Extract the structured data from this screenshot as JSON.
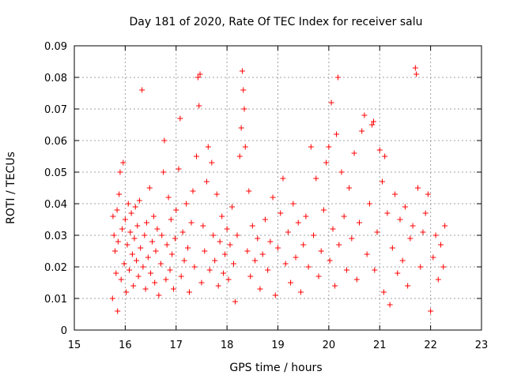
{
  "chart_data": {
    "type": "scatter",
    "title": "Day 181 of 2020, Rate Of TEC Index for receiver salu",
    "xlabel": "GPS time / hours",
    "ylabel": "ROTI / TECUs",
    "xlim": [
      15,
      23
    ],
    "ylim": [
      0,
      0.09
    ],
    "xticks": [
      15,
      16,
      17,
      18,
      19,
      20,
      21,
      22,
      23
    ],
    "xtick_labels": [
      "15",
      "16",
      "17",
      "18",
      "19",
      "20",
      "21",
      "22",
      "23"
    ],
    "yticks": [
      0,
      0.01,
      0.02,
      0.03,
      0.04,
      0.05,
      0.06,
      0.07,
      0.08,
      0.09
    ],
    "ytick_labels": [
      "0",
      "0.01",
      "0.02",
      "0.03",
      "0.04",
      "0.05",
      "0.06",
      "0.07",
      "0.08",
      "0.09"
    ],
    "grid": true,
    "marker": "+",
    "color": "#ff0000",
    "series": [
      {
        "name": "ROTI",
        "points": [
          [
            15.75,
            0.01
          ],
          [
            15.76,
            0.036
          ],
          [
            15.78,
            0.03
          ],
          [
            15.8,
            0.025
          ],
          [
            15.82,
            0.018
          ],
          [
            15.84,
            0.038
          ],
          [
            15.85,
            0.006
          ],
          [
            15.86,
            0.028
          ],
          [
            15.88,
            0.043
          ],
          [
            15.9,
            0.05
          ],
          [
            15.92,
            0.016
          ],
          [
            15.94,
            0.032
          ],
          [
            15.96,
            0.053
          ],
          [
            15.98,
            0.021
          ],
          [
            16.0,
            0.035
          ],
          [
            16.02,
            0.012
          ],
          [
            16.04,
            0.027
          ],
          [
            16.06,
            0.04
          ],
          [
            16.08,
            0.019
          ],
          [
            16.1,
            0.031
          ],
          [
            16.12,
            0.037
          ],
          [
            16.14,
            0.024
          ],
          [
            16.16,
            0.014
          ],
          [
            16.18,
            0.029
          ],
          [
            16.2,
            0.039
          ],
          [
            16.22,
            0.022
          ],
          [
            16.24,
            0.033
          ],
          [
            16.26,
            0.017
          ],
          [
            16.28,
            0.041
          ],
          [
            16.3,
            0.026
          ],
          [
            16.33,
            0.076
          ],
          [
            16.35,
            0.02
          ],
          [
            16.38,
            0.03
          ],
          [
            16.4,
            0.013
          ],
          [
            16.42,
            0.034
          ],
          [
            16.45,
            0.023
          ],
          [
            16.48,
            0.045
          ],
          [
            16.5,
            0.018
          ],
          [
            16.53,
            0.028
          ],
          [
            16.56,
            0.036
          ],
          [
            16.58,
            0.015
          ],
          [
            16.6,
            0.025
          ],
          [
            16.63,
            0.032
          ],
          [
            16.66,
            0.011
          ],
          [
            16.7,
            0.021
          ],
          [
            16.72,
            0.03
          ],
          [
            16.75,
            0.05
          ],
          [
            16.77,
            0.06
          ],
          [
            16.8,
            0.016
          ],
          [
            16.82,
            0.027
          ],
          [
            16.85,
            0.042
          ],
          [
            16.88,
            0.019
          ],
          [
            16.9,
            0.035
          ],
          [
            16.92,
            0.024
          ],
          [
            16.95,
            0.013
          ],
          [
            16.98,
            0.029
          ],
          [
            17.0,
            0.038
          ],
          [
            17.05,
            0.051
          ],
          [
            17.08,
            0.067
          ],
          [
            17.1,
            0.017
          ],
          [
            17.13,
            0.031
          ],
          [
            17.16,
            0.022
          ],
          [
            17.2,
            0.04
          ],
          [
            17.23,
            0.026
          ],
          [
            17.26,
            0.012
          ],
          [
            17.3,
            0.034
          ],
          [
            17.33,
            0.044
          ],
          [
            17.36,
            0.02
          ],
          [
            17.4,
            0.055
          ],
          [
            17.43,
            0.08
          ],
          [
            17.45,
            0.071
          ],
          [
            17.47,
            0.081
          ],
          [
            17.5,
            0.015
          ],
          [
            17.53,
            0.033
          ],
          [
            17.56,
            0.025
          ],
          [
            17.6,
            0.047
          ],
          [
            17.63,
            0.058
          ],
          [
            17.66,
            0.019
          ],
          [
            17.7,
            0.053
          ],
          [
            17.73,
            0.03
          ],
          [
            17.76,
            0.022
          ],
          [
            17.8,
            0.043
          ],
          [
            17.83,
            0.014
          ],
          [
            17.86,
            0.028
          ],
          [
            17.9,
            0.036
          ],
          [
            17.93,
            0.018
          ],
          [
            17.96,
            0.024
          ],
          [
            18.0,
            0.032
          ],
          [
            18.03,
            0.016
          ],
          [
            18.06,
            0.027
          ],
          [
            18.1,
            0.039
          ],
          [
            18.13,
            0.021
          ],
          [
            18.16,
            0.009
          ],
          [
            18.2,
            0.03
          ],
          [
            18.25,
            0.055
          ],
          [
            18.28,
            0.064
          ],
          [
            18.3,
            0.082
          ],
          [
            18.32,
            0.076
          ],
          [
            18.34,
            0.07
          ],
          [
            18.36,
            0.058
          ],
          [
            18.4,
            0.025
          ],
          [
            18.43,
            0.044
          ],
          [
            18.46,
            0.017
          ],
          [
            18.5,
            0.033
          ],
          [
            18.55,
            0.022
          ],
          [
            18.6,
            0.029
          ],
          [
            18.65,
            0.013
          ],
          [
            18.7,
            0.024
          ],
          [
            18.75,
            0.035
          ],
          [
            18.8,
            0.019
          ],
          [
            18.85,
            0.028
          ],
          [
            18.9,
            0.042
          ],
          [
            18.95,
            0.011
          ],
          [
            19.0,
            0.026
          ],
          [
            19.05,
            0.037
          ],
          [
            19.1,
            0.048
          ],
          [
            19.15,
            0.021
          ],
          [
            19.2,
            0.031
          ],
          [
            19.25,
            0.015
          ],
          [
            19.3,
            0.04
          ],
          [
            19.35,
            0.023
          ],
          [
            19.4,
            0.034
          ],
          [
            19.45,
            0.012
          ],
          [
            19.5,
            0.027
          ],
          [
            19.55,
            0.036
          ],
          [
            19.6,
            0.02
          ],
          [
            19.65,
            0.058
          ],
          [
            19.7,
            0.03
          ],
          [
            19.75,
            0.048
          ],
          [
            19.8,
            0.017
          ],
          [
            19.85,
            0.025
          ],
          [
            19.9,
            0.038
          ],
          [
            19.95,
            0.053
          ],
          [
            20.0,
            0.058
          ],
          [
            20.02,
            0.022
          ],
          [
            20.05,
            0.072
          ],
          [
            20.08,
            0.032
          ],
          [
            20.12,
            0.014
          ],
          [
            20.15,
            0.062
          ],
          [
            20.18,
            0.08
          ],
          [
            20.2,
            0.027
          ],
          [
            20.25,
            0.05
          ],
          [
            20.3,
            0.036
          ],
          [
            20.35,
            0.019
          ],
          [
            20.4,
            0.045
          ],
          [
            20.45,
            0.029
          ],
          [
            20.5,
            0.056
          ],
          [
            20.55,
            0.016
          ],
          [
            20.6,
            0.034
          ],
          [
            20.65,
            0.063
          ],
          [
            20.7,
            0.068
          ],
          [
            20.75,
            0.024
          ],
          [
            20.8,
            0.04
          ],
          [
            20.85,
            0.065
          ],
          [
            20.88,
            0.066
          ],
          [
            20.9,
            0.019
          ],
          [
            20.95,
            0.031
          ],
          [
            21.0,
            0.057
          ],
          [
            21.05,
            0.047
          ],
          [
            21.08,
            0.012
          ],
          [
            21.1,
            0.055
          ],
          [
            21.15,
            0.037
          ],
          [
            21.2,
            0.008
          ],
          [
            21.25,
            0.026
          ],
          [
            21.3,
            0.043
          ],
          [
            21.35,
            0.018
          ],
          [
            21.4,
            0.035
          ],
          [
            21.45,
            0.022
          ],
          [
            21.5,
            0.039
          ],
          [
            21.55,
            0.014
          ],
          [
            21.6,
            0.029
          ],
          [
            21.65,
            0.033
          ],
          [
            21.7,
            0.083
          ],
          [
            21.72,
            0.081
          ],
          [
            21.75,
            0.045
          ],
          [
            21.8,
            0.02
          ],
          [
            21.85,
            0.031
          ],
          [
            21.9,
            0.037
          ],
          [
            21.95,
            0.043
          ],
          [
            22.0,
            0.006
          ],
          [
            22.05,
            0.023
          ],
          [
            22.1,
            0.03
          ],
          [
            22.15,
            0.016
          ],
          [
            22.2,
            0.027
          ],
          [
            22.25,
            0.02
          ],
          [
            22.28,
            0.033
          ]
        ]
      }
    ]
  }
}
